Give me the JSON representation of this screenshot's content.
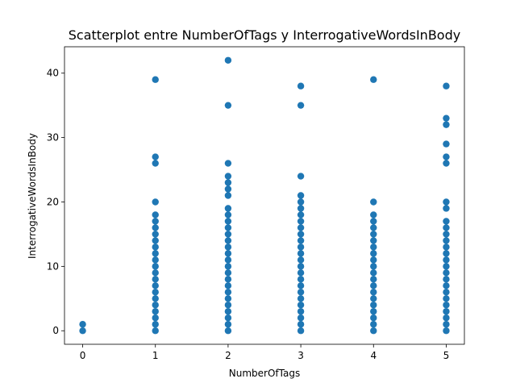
{
  "chart_data": {
    "type": "scatter",
    "title": "Scatterplot entre NumberOfTags y InterrogativeWordsInBody",
    "xlabel": "NumberOfTags",
    "ylabel": "InterrogativeWordsInBody",
    "xlim": [
      -0.25,
      5.25
    ],
    "ylim": [
      -2.1,
      44.1
    ],
    "xticks": [
      0,
      1,
      2,
      3,
      4,
      5
    ],
    "yticks": [
      0,
      10,
      20,
      30,
      40
    ],
    "grid": false,
    "marker_color": "#1f77b4",
    "points": [
      {
        "x": 0,
        "y": 0
      },
      {
        "x": 0,
        "y": 1
      },
      {
        "x": 1,
        "y": 0
      },
      {
        "x": 1,
        "y": 1
      },
      {
        "x": 1,
        "y": 2
      },
      {
        "x": 1,
        "y": 3
      },
      {
        "x": 1,
        "y": 4
      },
      {
        "x": 1,
        "y": 5
      },
      {
        "x": 1,
        "y": 6
      },
      {
        "x": 1,
        "y": 7
      },
      {
        "x": 1,
        "y": 8
      },
      {
        "x": 1,
        "y": 9
      },
      {
        "x": 1,
        "y": 10
      },
      {
        "x": 1,
        "y": 11
      },
      {
        "x": 1,
        "y": 12
      },
      {
        "x": 1,
        "y": 13
      },
      {
        "x": 1,
        "y": 14
      },
      {
        "x": 1,
        "y": 15
      },
      {
        "x": 1,
        "y": 16
      },
      {
        "x": 1,
        "y": 17
      },
      {
        "x": 1,
        "y": 18
      },
      {
        "x": 1,
        "y": 20
      },
      {
        "x": 1,
        "y": 26
      },
      {
        "x": 1,
        "y": 27
      },
      {
        "x": 1,
        "y": 39
      },
      {
        "x": 2,
        "y": 0
      },
      {
        "x": 2,
        "y": 1
      },
      {
        "x": 2,
        "y": 2
      },
      {
        "x": 2,
        "y": 3
      },
      {
        "x": 2,
        "y": 4
      },
      {
        "x": 2,
        "y": 5
      },
      {
        "x": 2,
        "y": 6
      },
      {
        "x": 2,
        "y": 7
      },
      {
        "x": 2,
        "y": 8
      },
      {
        "x": 2,
        "y": 9
      },
      {
        "x": 2,
        "y": 10
      },
      {
        "x": 2,
        "y": 11
      },
      {
        "x": 2,
        "y": 12
      },
      {
        "x": 2,
        "y": 13
      },
      {
        "x": 2,
        "y": 14
      },
      {
        "x": 2,
        "y": 15
      },
      {
        "x": 2,
        "y": 16
      },
      {
        "x": 2,
        "y": 17
      },
      {
        "x": 2,
        "y": 18
      },
      {
        "x": 2,
        "y": 19
      },
      {
        "x": 2,
        "y": 21
      },
      {
        "x": 2,
        "y": 22
      },
      {
        "x": 2,
        "y": 23
      },
      {
        "x": 2,
        "y": 24
      },
      {
        "x": 2,
        "y": 26
      },
      {
        "x": 2,
        "y": 35
      },
      {
        "x": 2,
        "y": 42
      },
      {
        "x": 3,
        "y": 0
      },
      {
        "x": 3,
        "y": 1
      },
      {
        "x": 3,
        "y": 2
      },
      {
        "x": 3,
        "y": 3
      },
      {
        "x": 3,
        "y": 4
      },
      {
        "x": 3,
        "y": 5
      },
      {
        "x": 3,
        "y": 6
      },
      {
        "x": 3,
        "y": 7
      },
      {
        "x": 3,
        "y": 8
      },
      {
        "x": 3,
        "y": 9
      },
      {
        "x": 3,
        "y": 10
      },
      {
        "x": 3,
        "y": 11
      },
      {
        "x": 3,
        "y": 12
      },
      {
        "x": 3,
        "y": 13
      },
      {
        "x": 3,
        "y": 14
      },
      {
        "x": 3,
        "y": 15
      },
      {
        "x": 3,
        "y": 16
      },
      {
        "x": 3,
        "y": 17
      },
      {
        "x": 3,
        "y": 18
      },
      {
        "x": 3,
        "y": 19
      },
      {
        "x": 3,
        "y": 20
      },
      {
        "x": 3,
        "y": 21
      },
      {
        "x": 3,
        "y": 24
      },
      {
        "x": 3,
        "y": 35
      },
      {
        "x": 3,
        "y": 38
      },
      {
        "x": 4,
        "y": 0
      },
      {
        "x": 4,
        "y": 1
      },
      {
        "x": 4,
        "y": 2
      },
      {
        "x": 4,
        "y": 3
      },
      {
        "x": 4,
        "y": 4
      },
      {
        "x": 4,
        "y": 5
      },
      {
        "x": 4,
        "y": 6
      },
      {
        "x": 4,
        "y": 7
      },
      {
        "x": 4,
        "y": 8
      },
      {
        "x": 4,
        "y": 9
      },
      {
        "x": 4,
        "y": 10
      },
      {
        "x": 4,
        "y": 11
      },
      {
        "x": 4,
        "y": 12
      },
      {
        "x": 4,
        "y": 13
      },
      {
        "x": 4,
        "y": 14
      },
      {
        "x": 4,
        "y": 15
      },
      {
        "x": 4,
        "y": 16
      },
      {
        "x": 4,
        "y": 17
      },
      {
        "x": 4,
        "y": 18
      },
      {
        "x": 4,
        "y": 20
      },
      {
        "x": 4,
        "y": 39
      },
      {
        "x": 5,
        "y": 0
      },
      {
        "x": 5,
        "y": 1
      },
      {
        "x": 5,
        "y": 2
      },
      {
        "x": 5,
        "y": 3
      },
      {
        "x": 5,
        "y": 4
      },
      {
        "x": 5,
        "y": 5
      },
      {
        "x": 5,
        "y": 6
      },
      {
        "x": 5,
        "y": 7
      },
      {
        "x": 5,
        "y": 8
      },
      {
        "x": 5,
        "y": 9
      },
      {
        "x": 5,
        "y": 10
      },
      {
        "x": 5,
        "y": 11
      },
      {
        "x": 5,
        "y": 12
      },
      {
        "x": 5,
        "y": 13
      },
      {
        "x": 5,
        "y": 14
      },
      {
        "x": 5,
        "y": 15
      },
      {
        "x": 5,
        "y": 16
      },
      {
        "x": 5,
        "y": 17
      },
      {
        "x": 5,
        "y": 19
      },
      {
        "x": 5,
        "y": 20
      },
      {
        "x": 5,
        "y": 26
      },
      {
        "x": 5,
        "y": 27
      },
      {
        "x": 5,
        "y": 29
      },
      {
        "x": 5,
        "y": 32
      },
      {
        "x": 5,
        "y": 33
      },
      {
        "x": 5,
        "y": 38
      }
    ]
  }
}
